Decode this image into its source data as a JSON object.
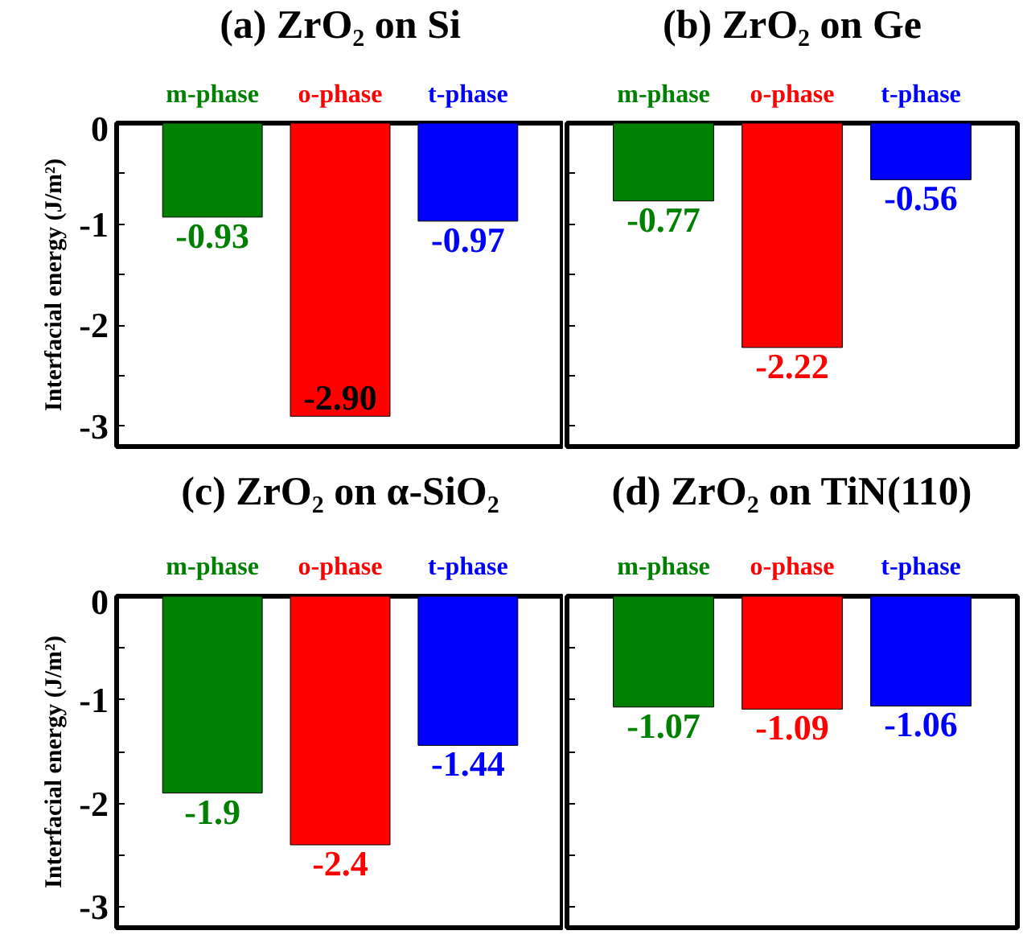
{
  "chart_data": [
    {
      "type": "bar",
      "title": "(a) ZrO₂ on Si",
      "ylabel": "Interfacial energy (J/m²)",
      "categories": [
        "m-phase",
        "o-phase",
        "t-phase"
      ],
      "values": [
        -0.93,
        -2.9,
        -0.97
      ],
      "value_labels": [
        "-0.93",
        "-2.90",
        "-0.97"
      ],
      "data_labels": true,
      "colors": [
        "#008000",
        "#ff0000",
        "#0000ff"
      ],
      "ylim": [
        -3.2,
        0
      ],
      "yticks": [
        0,
        {
          "value": -0.5,
          "label": null
        },
        -1,
        {
          "value": -1.5,
          "label": null
        },
        -2,
        {
          "value": -2.5,
          "label": null
        },
        -3
      ]
    },
    {
      "type": "bar",
      "title": "(b) ZrO₂ on Ge",
      "categories": [
        "m-phase",
        "o-phase",
        "t-phase"
      ],
      "values": [
        -0.77,
        -2.22,
        -0.56
      ],
      "value_labels": [
        "-0.77",
        "-2.22",
        "-0.56"
      ],
      "data_labels": true,
      "colors": [
        "#008000",
        "#ff0000",
        "#0000ff"
      ],
      "ylim": [
        -3.2,
        0
      ],
      "yticks": [
        0,
        {
          "value": -0.5,
          "label": null
        },
        -1,
        {
          "value": -1.5,
          "label": null
        },
        -2,
        {
          "value": -2.5,
          "label": null
        },
        -3
      ],
      "tick_labels": "x"
    },
    {
      "type": "bar",
      "title": "(c) ZrO₂ on α-SiO₂",
      "ylabel": "Interfacial energy (J/m²)",
      "categories": [
        "m-phase",
        "o-phase",
        "t-phase"
      ],
      "values": [
        -1.9,
        -2.4,
        -1.44
      ],
      "value_labels": [
        "-1.9",
        "-2.4",
        "-1.44"
      ],
      "data_labels": true,
      "colors": [
        "#008000",
        "#ff0000",
        "#0000ff"
      ],
      "ylim": [
        -3.2,
        0
      ],
      "yticks": [
        0,
        {
          "value": -0.5,
          "label": null
        },
        -1,
        {
          "value": -1.5,
          "label": null
        },
        -2,
        {
          "value": -2.5,
          "label": null
        },
        -3
      ]
    },
    {
      "type": "bar",
      "title": "(d) ZrO₂ on TiN(110)",
      "categories": [
        "m-phase",
        "o-phase",
        "t-phase"
      ],
      "values": [
        -1.07,
        -1.09,
        -1.06
      ],
      "value_labels": [
        "-1.07",
        "-1.09",
        "-1.06"
      ],
      "data_labels": true,
      "colors": [
        "#008000",
        "#ff0000",
        "#0000ff"
      ],
      "ylim": [
        -3.2,
        0
      ],
      "yticks": [
        0,
        {
          "value": -0.5,
          "label": null
        },
        -1,
        {
          "value": -1.5,
          "label": null
        },
        -2,
        {
          "value": -2.5,
          "label": null
        },
        -3
      ],
      "tick_labels": "x"
    }
  ]
}
